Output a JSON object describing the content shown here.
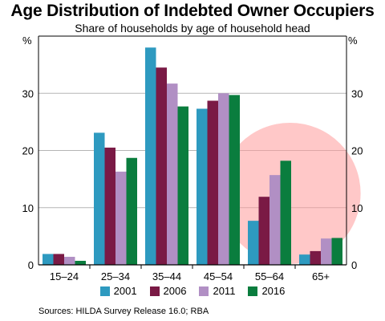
{
  "chart_data": {
    "type": "bar",
    "title": "Age Distribution of Indebted Owner Occupiers",
    "subtitle": "Share of households by age of household head",
    "unit_left": "%",
    "unit_right": "%",
    "categories": [
      "15–24",
      "25–34",
      "35–44",
      "45–54",
      "55–64",
      "65+"
    ],
    "series": [
      {
        "name": "2001",
        "color": "#2E9AC0",
        "values": [
          1.9,
          23.1,
          38.0,
          27.3,
          7.7,
          1.8
        ]
      },
      {
        "name": "2006",
        "color": "#7A1A45",
        "values": [
          1.9,
          20.5,
          34.5,
          28.7,
          11.9,
          2.4
        ]
      },
      {
        "name": "2011",
        "color": "#B18FC4",
        "values": [
          1.4,
          16.3,
          31.7,
          30.0,
          15.7,
          4.6
        ]
      },
      {
        "name": "2016",
        "color": "#0A7D3E",
        "values": [
          0.7,
          18.7,
          27.7,
          29.7,
          18.2,
          4.7
        ]
      }
    ],
    "ylim": [
      0,
      40
    ],
    "yticks": [
      0,
      10,
      20,
      30
    ],
    "gridlines": true,
    "legend_position": "bottom",
    "highlight": {
      "shape": "circle",
      "color": "#FF9A9A",
      "around_categories": [
        "55–64",
        "65+"
      ]
    }
  },
  "source_note": "Sources:  HILDA Survey Release 16.0; RBA"
}
